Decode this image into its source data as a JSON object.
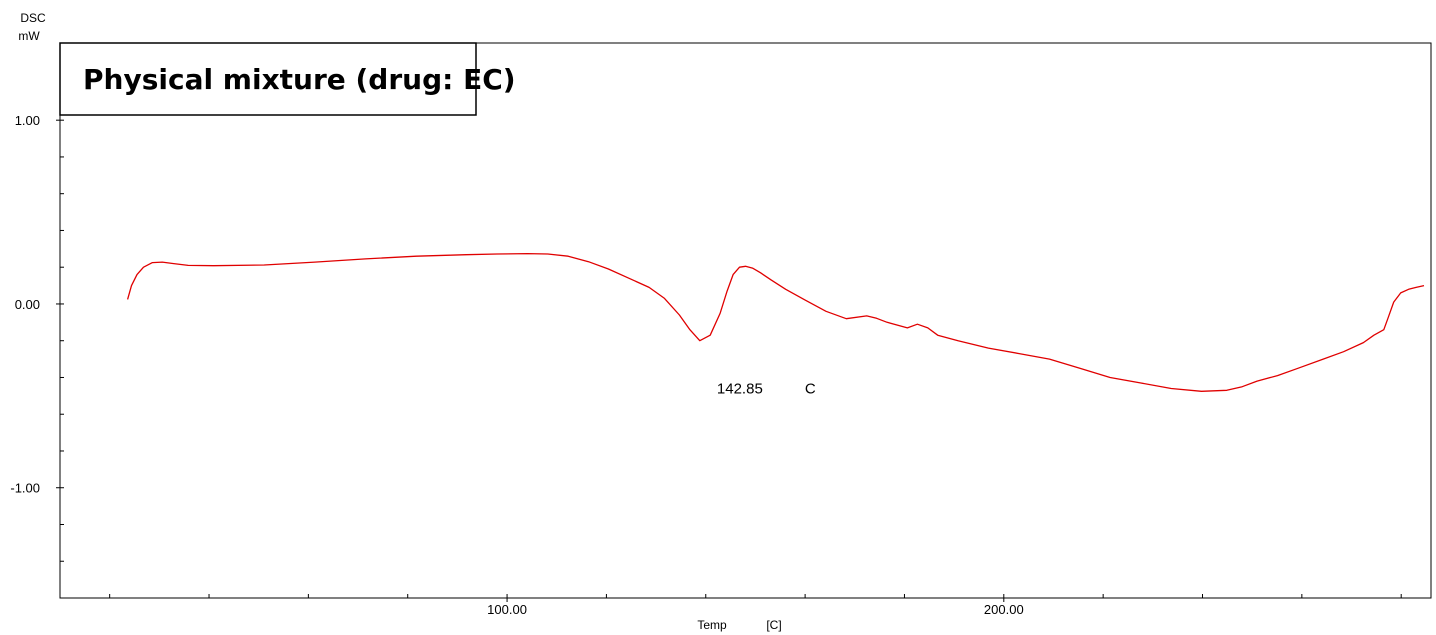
{
  "chart_data": {
    "type": "line",
    "title": "Physical mixture (drug: EC)",
    "ylabel": "DSC",
    "yunit": "mW",
    "xlabel": "Temp",
    "xunit": "[C]",
    "xlim": [
      10.0,
      286.0
    ],
    "ylim": [
      -1.6,
      1.42
    ],
    "x_ticks": [
      {
        "value": 100.0,
        "label": "100.00"
      },
      {
        "value": 200.0,
        "label": "200.00"
      }
    ],
    "y_ticks": [
      {
        "value": 1.0,
        "label": "1.00"
      },
      {
        "value": 0.0,
        "label": "0.00"
      },
      {
        "value": -1.0,
        "label": "-1.00"
      }
    ],
    "x_minor_step": 20,
    "y_minor_step": 0.2,
    "grid": false,
    "series": [
      {
        "color": "#e00000",
        "x": [
          23.6,
          24.4,
          25.5,
          26.8,
          28.6,
          30.6,
          32.7,
          35.8,
          40.9,
          51.1,
          61.3,
          71.5,
          81.7,
          91.8,
          98.0,
          104.1,
          108.2,
          112.3,
          116.4,
          120.4,
          124.5,
          128.6,
          131.7,
          134.7,
          136.8,
          138.8,
          140.9,
          142.9,
          144.3,
          145.5,
          146.8,
          148.0,
          149.4,
          151.0,
          153.2,
          156.1,
          160.1,
          164.2,
          168.3,
          172.4,
          174.4,
          176.5,
          180.6,
          182.6,
          184.7,
          186.7,
          190.8,
          196.9,
          203.1,
          209.2,
          215.3,
          221.4,
          227.6,
          233.7,
          239.8,
          244.9,
          248.0,
          251.0,
          255.1,
          259.2,
          264.3,
          268.4,
          272.4,
          274.5,
          276.5,
          277.3,
          278.5,
          279.9,
          281.5,
          283.0,
          284.6
        ],
        "y": [
          0.025,
          0.1,
          0.16,
          0.2,
          0.225,
          0.228,
          0.22,
          0.21,
          0.208,
          0.212,
          0.228,
          0.245,
          0.26,
          0.268,
          0.272,
          0.274,
          0.272,
          0.26,
          0.23,
          0.19,
          0.14,
          0.09,
          0.03,
          -0.06,
          -0.14,
          -0.2,
          -0.17,
          -0.05,
          0.07,
          0.16,
          0.2,
          0.205,
          0.195,
          0.17,
          0.13,
          0.08,
          0.02,
          -0.04,
          -0.08,
          -0.065,
          -0.078,
          -0.1,
          -0.13,
          -0.11,
          -0.13,
          -0.17,
          -0.2,
          -0.24,
          -0.27,
          -0.3,
          -0.35,
          -0.4,
          -0.43,
          -0.46,
          -0.475,
          -0.47,
          -0.45,
          -0.42,
          -0.39,
          -0.35,
          -0.3,
          -0.26,
          -0.21,
          -0.17,
          -0.14,
          -0.08,
          0.01,
          0.06,
          0.08,
          0.09,
          0.1
        ]
      }
    ],
    "annotations": [
      {
        "x": 142.85,
        "y": -0.2,
        "value": "142.85",
        "unit": "C"
      }
    ]
  }
}
